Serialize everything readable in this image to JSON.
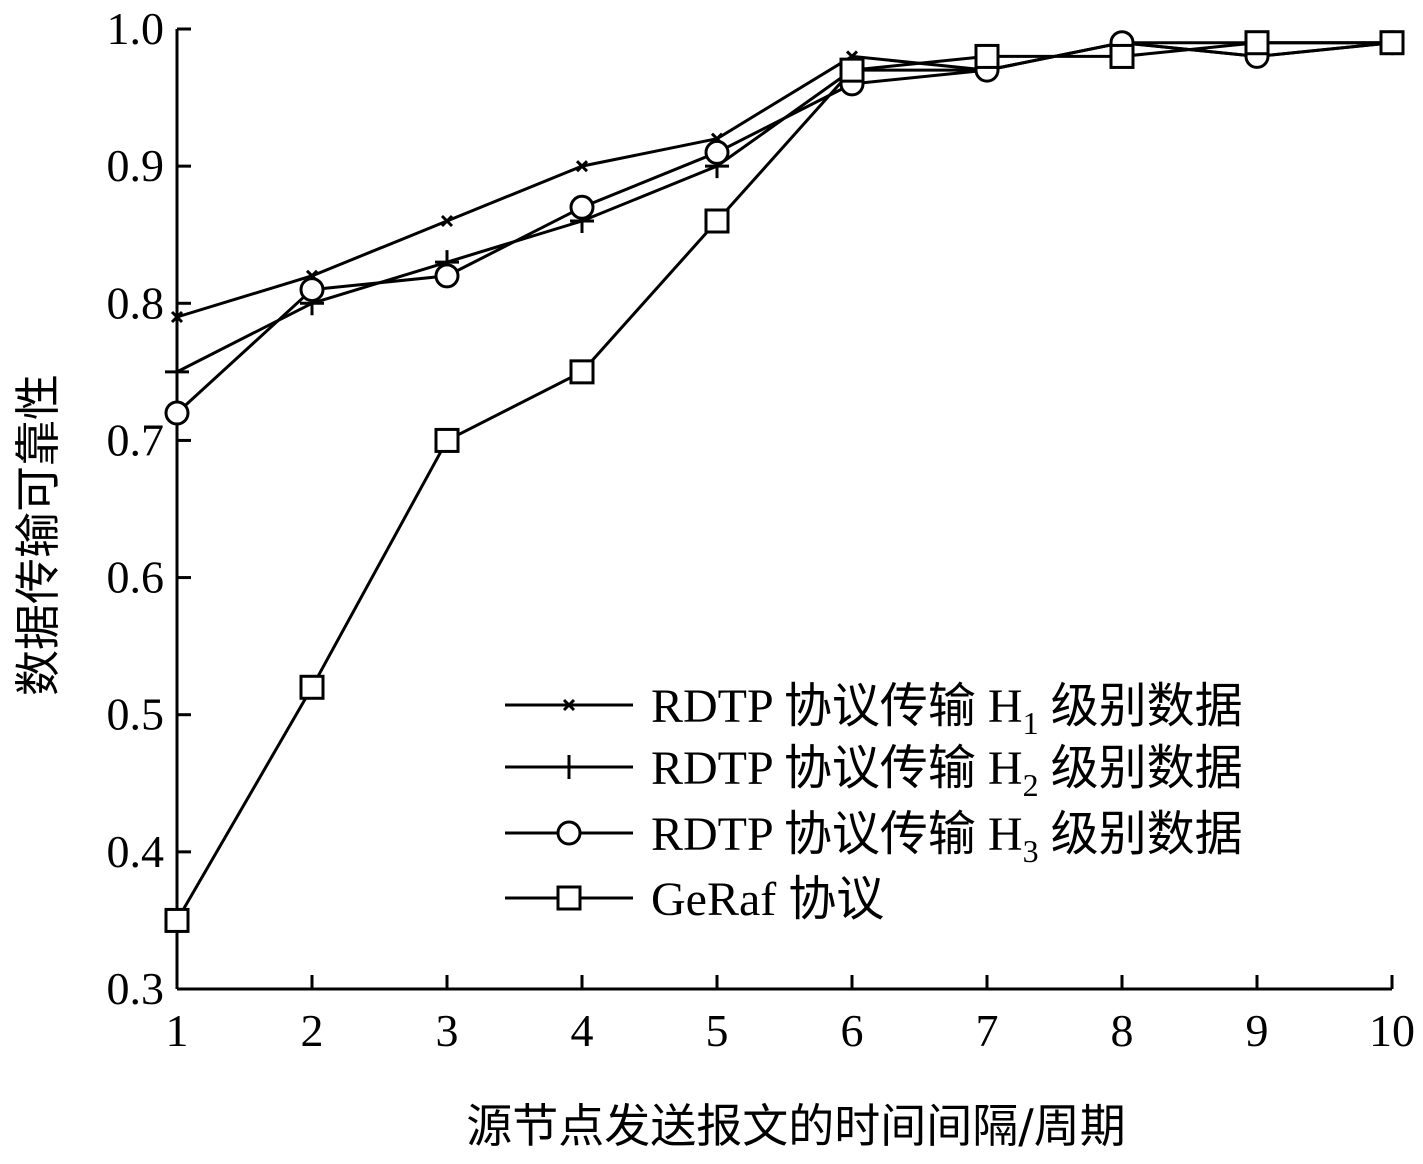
{
  "chart_data": {
    "type": "line",
    "xlabel": "源节点发送报文的时间间隔/周期",
    "ylabel": "数据传输可靠性",
    "x": [
      1,
      2,
      3,
      4,
      5,
      6,
      7,
      8,
      9,
      10
    ],
    "xlim": [
      1,
      10
    ],
    "ylim": [
      0.3,
      1.0
    ],
    "x_ticks": [
      "1",
      "2",
      "3",
      "4",
      "5",
      "6",
      "7",
      "8",
      "9",
      "10"
    ],
    "y_ticks": [
      "0.3",
      "0.4",
      "0.5",
      "0.6",
      "0.7",
      "0.8",
      "0.9",
      "1.0"
    ],
    "grid": false,
    "legend_position": "bottom-right",
    "series": [
      {
        "name": "RDTP 协议传输 H1 级别数据",
        "legend_prefix": "RDTP 协议传输 H",
        "legend_sub": "1",
        "legend_suffix": " 级别数据",
        "marker": "x",
        "values": [
          0.79,
          0.82,
          0.86,
          0.9,
          0.92,
          0.98,
          0.97,
          0.99,
          0.98,
          0.99
        ]
      },
      {
        "name": "RDTP 协议传输 H2 级别数据",
        "legend_prefix": "RDTP 协议传输 H",
        "legend_sub": "2",
        "legend_suffix": " 级别数据",
        "marker": "plus",
        "values": [
          0.75,
          0.8,
          0.83,
          0.86,
          0.9,
          0.97,
          0.97,
          0.99,
          0.99,
          0.99
        ]
      },
      {
        "name": "RDTP 协议传输 H3 级别数据",
        "legend_prefix": "RDTP 协议传输 H",
        "legend_sub": "3",
        "legend_suffix": " 级别数据",
        "marker": "circle",
        "values": [
          0.72,
          0.81,
          0.82,
          0.87,
          0.91,
          0.96,
          0.97,
          0.99,
          0.98,
          0.99
        ]
      },
      {
        "name": "GeRaf 协议",
        "legend_prefix": "GeRaf 协议",
        "legend_sub": "",
        "legend_suffix": "",
        "marker": "square",
        "values": [
          0.35,
          0.52,
          0.7,
          0.75,
          0.86,
          0.97,
          0.98,
          0.98,
          0.99,
          0.99
        ]
      }
    ]
  }
}
